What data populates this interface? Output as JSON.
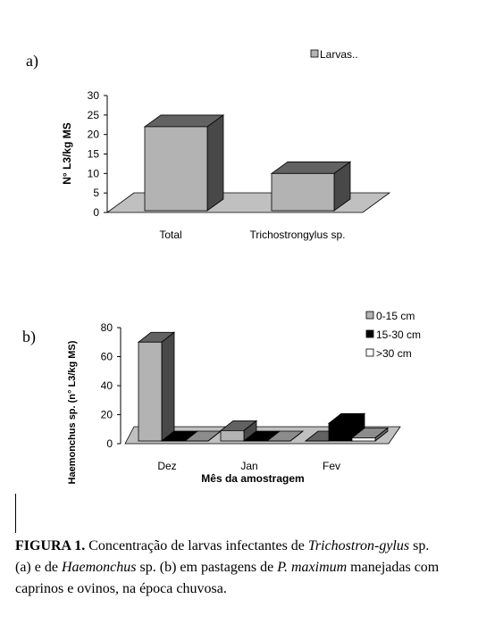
{
  "panel_a_letter": "a)",
  "panel_b_letter": "b)",
  "caption": {
    "label": "FIGURA 1.",
    "t1": " Concentração de larvas infectantes de ",
    "i1": "Trichostron-gylus",
    "t2": " sp. (a) e de ",
    "i2": "Haemonchus",
    "t3": " sp. (b) em pastagens de ",
    "i3": "P. maximum",
    "t4": " manejadas com caprinos e ovinos, na época chuvosa."
  },
  "chart_data": [
    {
      "type": "bar",
      "categories": [
        "Total",
        "Trichostrongylus sp."
      ],
      "series": [
        {
          "name": "Larvas..",
          "values": [
            22,
            10
          ],
          "color": "#b3b3b3"
        }
      ],
      "ylabel": "N° L3/kg MS",
      "xlabel": "",
      "ylim": [
        0,
        30
      ],
      "yticks": [
        0,
        5,
        10,
        15,
        20,
        25,
        30
      ],
      "legend_position": "top-right",
      "grid": false,
      "style": "3d"
    },
    {
      "type": "bar",
      "categories": [
        "Dez",
        "Jan",
        "Fev"
      ],
      "series": [
        {
          "name": "0-15 cm",
          "values": [
            70,
            9,
            0
          ],
          "color": "#b3b3b3"
        },
        {
          "name": "15-30 cm",
          "values": [
            0,
            0,
            14
          ],
          "color": "#000000"
        },
        {
          "name": ">30 cm",
          "values": [
            0,
            0,
            4
          ],
          "color": "#ffffff"
        }
      ],
      "ylabel": "Haemonchus sp. (n° L3/kg MS)",
      "xlabel": "Mês da amostragem",
      "ylim": [
        0,
        80
      ],
      "yticks": [
        0,
        20,
        40,
        60,
        80
      ],
      "legend_position": "top-right",
      "grid": false,
      "style": "3d"
    }
  ]
}
